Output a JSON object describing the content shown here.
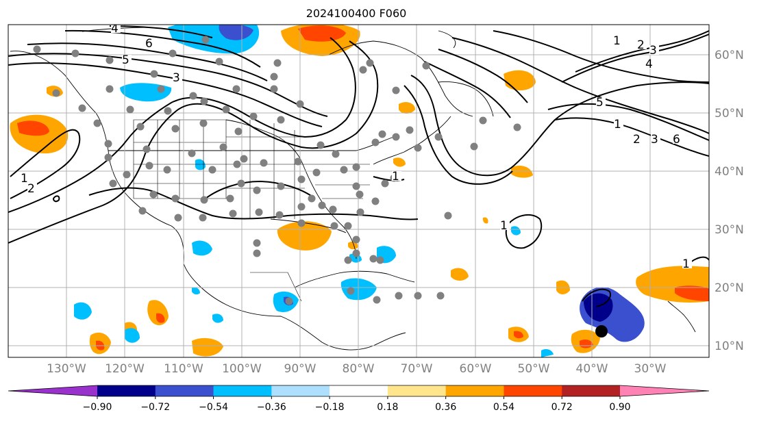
{
  "title": "2024100400 F060",
  "lat_labels": [
    "10°N",
    "20°N",
    "30°N",
    "40°N",
    "50°N",
    "60°N"
  ],
  "lon_labels": [
    "130°W",
    "120°W",
    "110°W",
    "100°W",
    "90°W",
    "80°W",
    "70°W",
    "60°W",
    "50°W",
    "40°W",
    "30°W"
  ],
  "colorbar": {
    "colors": [
      "#9932CC",
      "#00008B",
      "#3A50CF",
      "#00BFFF",
      "#ADDFFF",
      "#FFFFFF",
      "#FFE68C",
      "#FFA500",
      "#FF4500",
      "#B22222",
      "#FF82B4"
    ],
    "ticks": [
      "−0.90",
      "−0.72",
      "−0.54",
      "−0.36",
      "−0.18",
      "0.18",
      "0.36",
      "0.54",
      "0.72",
      "0.90"
    ]
  },
  "contour_labels": [
    "1",
    "2",
    "3",
    "4",
    "5",
    "6",
    "1",
    "2",
    "3",
    "4",
    "5",
    "6",
    "1",
    "2",
    "3",
    "1",
    "1",
    "1"
  ],
  "marker_color": "#000000",
  "obs_point_color": "#808080"
}
